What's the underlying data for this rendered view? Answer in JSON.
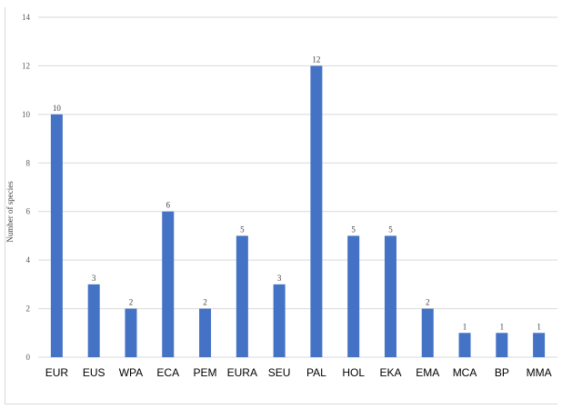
{
  "chart_data": {
    "type": "bar",
    "title": "",
    "xlabel": "",
    "ylabel": "Number of species",
    "ylim": [
      0,
      14
    ],
    "yticks": [
      0,
      2,
      4,
      6,
      8,
      10,
      12,
      14
    ],
    "grid": true,
    "legend": "none",
    "bar_color": "#4472c4",
    "grid_color": "#d9d9d9",
    "categories": [
      "EUR",
      "EUS",
      "WPA",
      "ECA",
      "PEM",
      "EURA",
      "SEU",
      "PAL",
      "HOL",
      "EKA",
      "EMA",
      "MCA",
      "BP",
      "MMA"
    ],
    "values": [
      10,
      3,
      2,
      6,
      2,
      5,
      3,
      12,
      5,
      5,
      2,
      1,
      1,
      1
    ]
  }
}
